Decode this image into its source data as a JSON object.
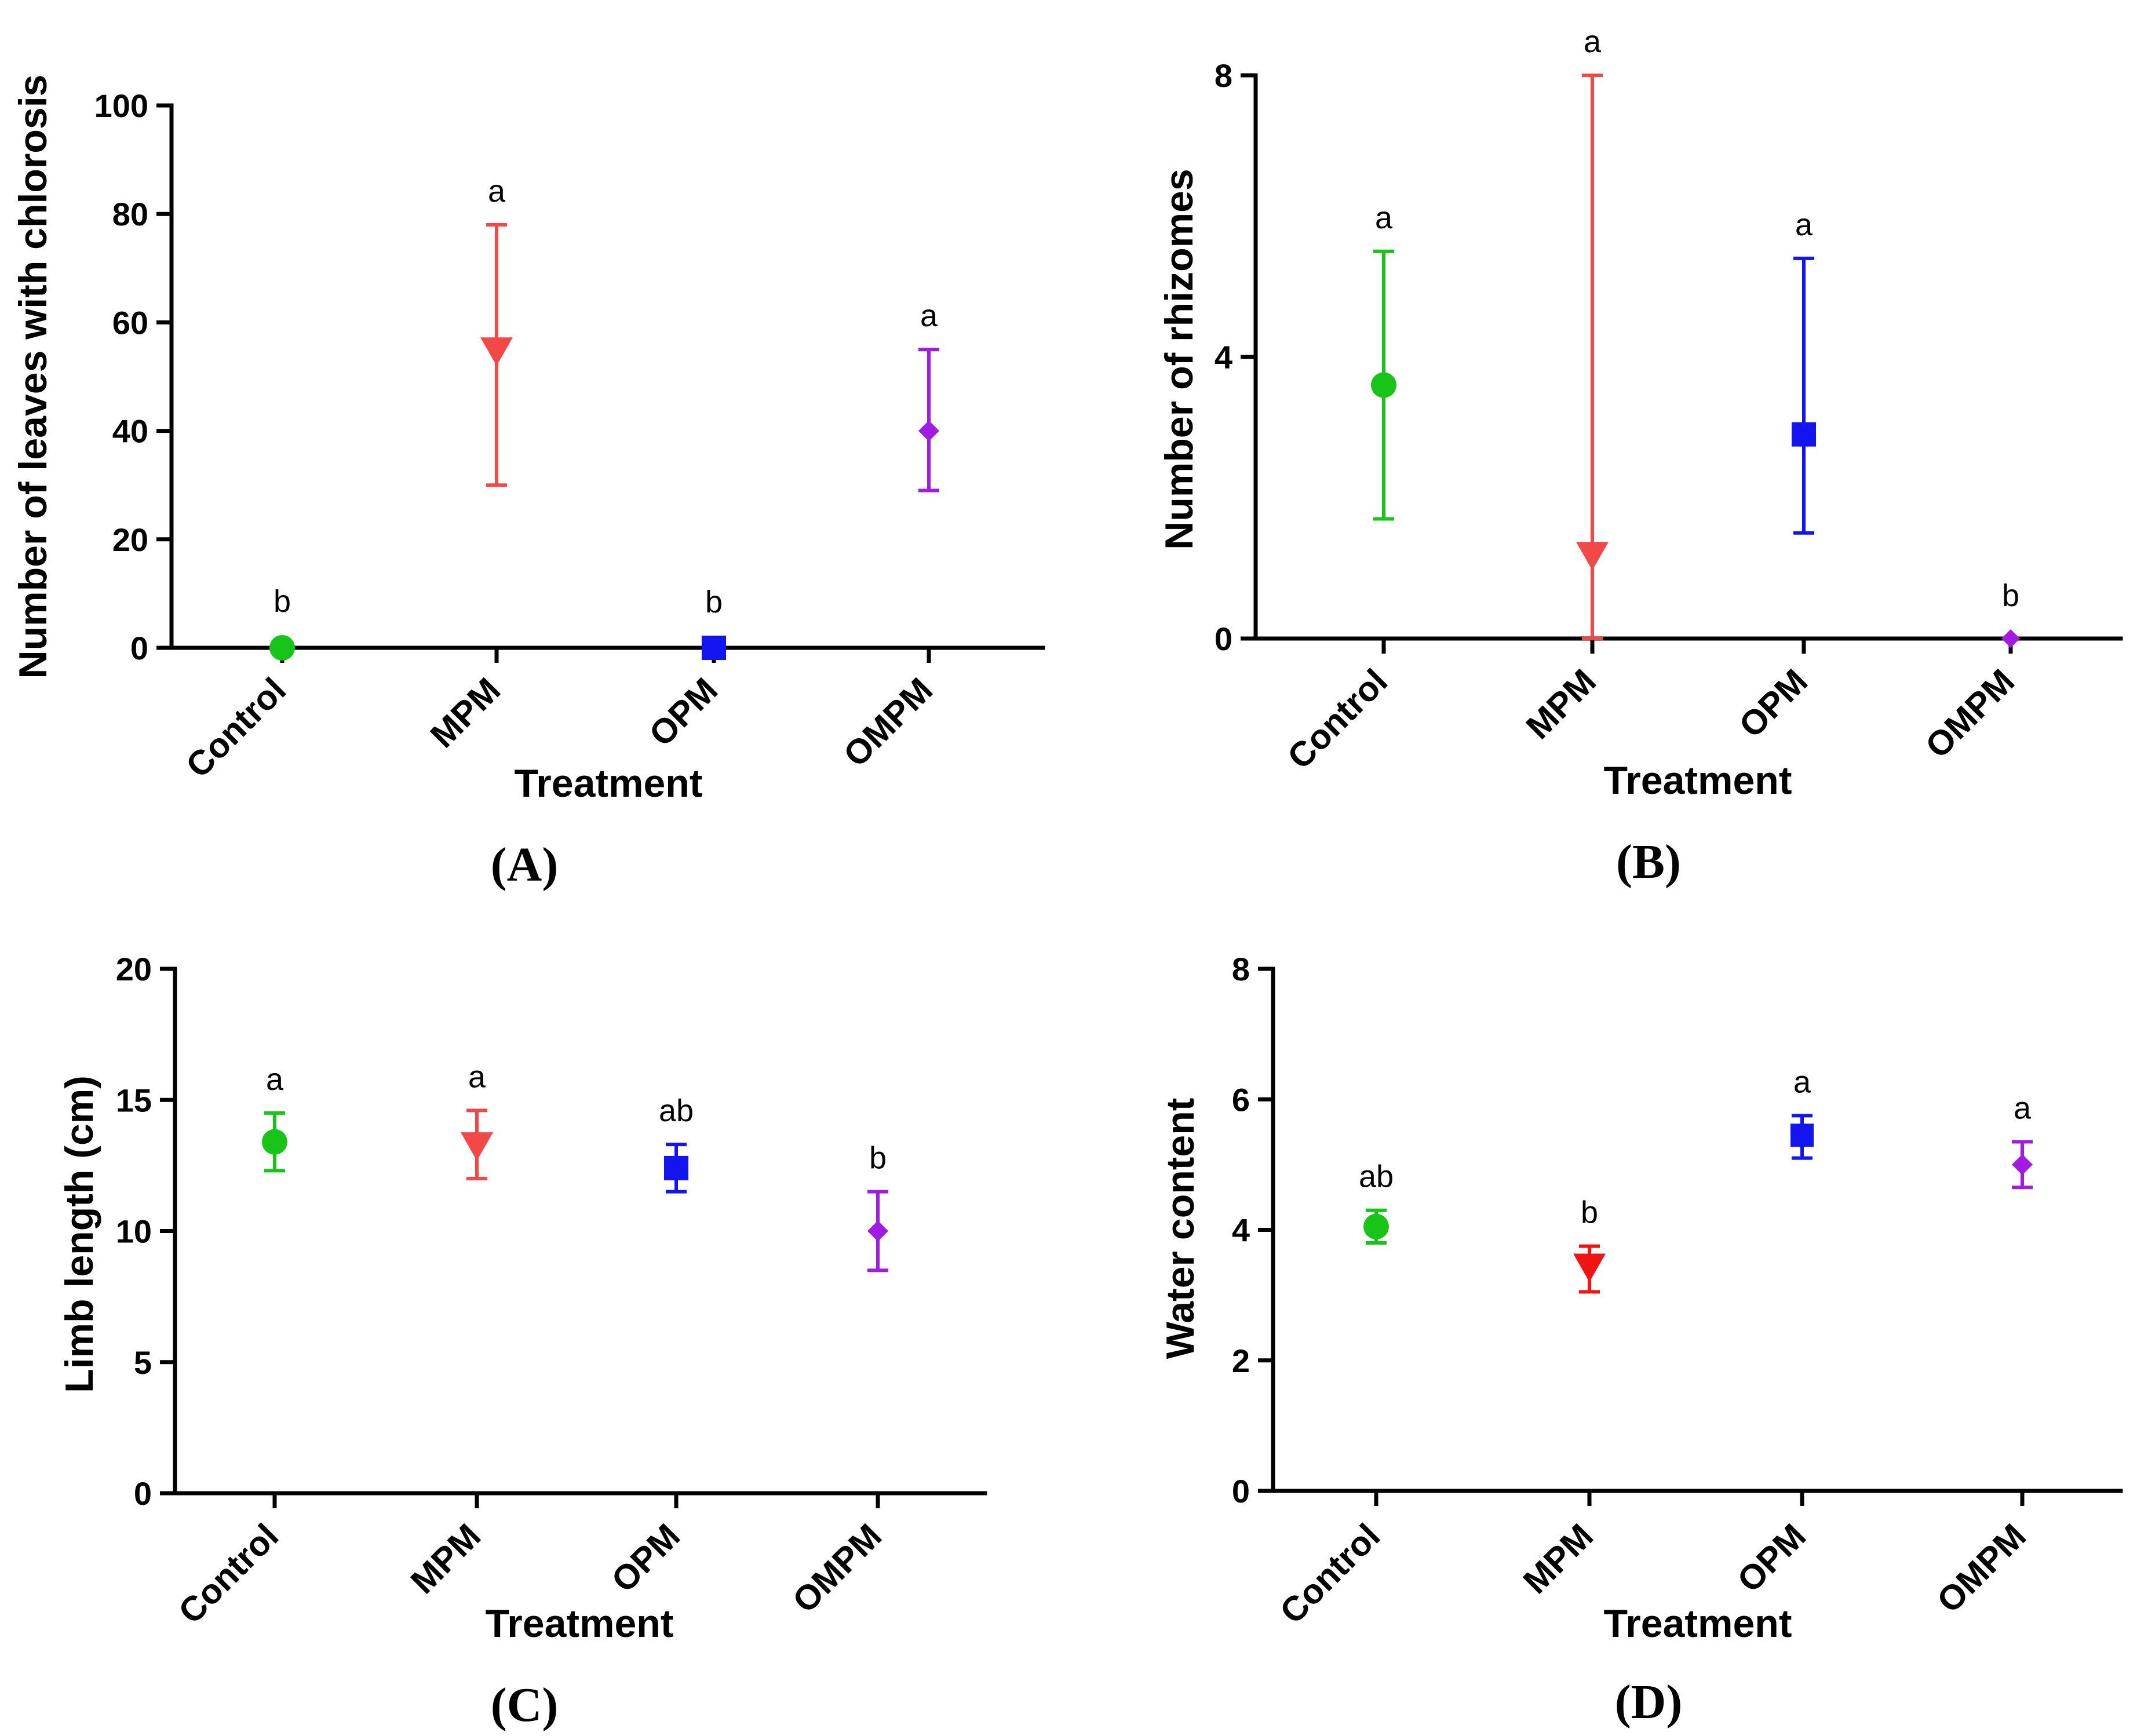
{
  "chart_data": [
    {
      "type": "scatter",
      "panel_label": "(A)",
      "xlabel": "Treatment",
      "ylabel": "Number of leaves with chlorosis",
      "ylim": [
        0,
        100
      ],
      "yticks": [
        0,
        20,
        40,
        60,
        80,
        100
      ],
      "categories": [
        "Control",
        "MPM",
        "OPM",
        "OMPM"
      ],
      "points": [
        {
          "category": "Control",
          "mean": 0,
          "low": 0,
          "high": 0,
          "sig": "b",
          "color": "#19c419",
          "marker": "circle"
        },
        {
          "category": "MPM",
          "mean": 55,
          "low": 30,
          "high": 78,
          "sig": "a",
          "color": "#f24848",
          "marker": "triangle-down"
        },
        {
          "category": "OPM",
          "mean": 0,
          "low": 0,
          "high": 0,
          "sig": "b",
          "color": "#1414f0",
          "marker": "square"
        },
        {
          "category": "OMPM",
          "mean": 40,
          "low": 29,
          "high": 55,
          "sig": "a",
          "color": "#a21be0",
          "marker": "diamond"
        }
      ]
    },
    {
      "type": "scatter",
      "panel_label": "(B)",
      "xlabel": "Treatment",
      "ylabel": "Number of rhizomes",
      "ylim": [
        0,
        8
      ],
      "yticks": [
        0,
        4,
        8
      ],
      "categories": [
        "Control",
        "MPM",
        "OPM",
        "OMPM"
      ],
      "points": [
        {
          "category": "Control",
          "mean": 3.6,
          "low": 1.7,
          "high": 5.5,
          "sig": "a",
          "color": "#19c419",
          "marker": "circle"
        },
        {
          "category": "MPM",
          "mean": 1.2,
          "low": 0,
          "high": 8,
          "sig": "a",
          "color": "#f24848",
          "marker": "triangle-down"
        },
        {
          "category": "OPM",
          "mean": 2.9,
          "low": 1.5,
          "high": 5.4,
          "sig": "a",
          "color": "#1414f0",
          "marker": "square"
        },
        {
          "category": "OMPM",
          "mean": 0,
          "low": 0,
          "high": 0,
          "sig": "b",
          "color": "#a21be0",
          "marker": "diamond"
        }
      ]
    },
    {
      "type": "scatter",
      "panel_label": "(C)",
      "xlabel": "Treatment",
      "ylabel": "Limb length (cm)",
      "ylim": [
        0,
        20
      ],
      "yticks": [
        0,
        5,
        10,
        15,
        20
      ],
      "categories": [
        "Control",
        "MPM",
        "OPM",
        "OMPM"
      ],
      "points": [
        {
          "category": "Control",
          "mean": 13.4,
          "low": 12.3,
          "high": 14.5,
          "sig": "a",
          "color": "#19c419",
          "marker": "circle"
        },
        {
          "category": "MPM",
          "mean": 13.3,
          "low": 12.0,
          "high": 14.6,
          "sig": "a",
          "color": "#f24848",
          "marker": "triangle-down"
        },
        {
          "category": "OPM",
          "mean": 12.4,
          "low": 11.5,
          "high": 13.3,
          "sig": "ab",
          "color": "#1414f0",
          "marker": "square"
        },
        {
          "category": "OMPM",
          "mean": 10.0,
          "low": 8.5,
          "high": 11.5,
          "sig": "b",
          "color": "#a21be0",
          "marker": "diamond"
        }
      ]
    },
    {
      "type": "scatter",
      "panel_label": "(D)",
      "xlabel": "Treatment",
      "ylabel": "Water content",
      "ylim": [
        0,
        8
      ],
      "yticks": [
        0,
        2,
        4,
        6,
        8
      ],
      "categories": [
        "Control",
        "MPM",
        "OPM",
        "OMPM"
      ],
      "points": [
        {
          "category": "Control",
          "mean": 4.05,
          "low": 3.8,
          "high": 4.3,
          "sig": "ab",
          "color": "#19c419",
          "marker": "circle"
        },
        {
          "category": "MPM",
          "mean": 3.45,
          "low": 3.05,
          "high": 3.75,
          "sig": "b",
          "color": "#f01414",
          "marker": "triangle-down"
        },
        {
          "category": "OPM",
          "mean": 5.45,
          "low": 5.1,
          "high": 5.75,
          "sig": "a",
          "color": "#1414f0",
          "marker": "square"
        },
        {
          "category": "OMPM",
          "mean": 5.0,
          "low": 4.65,
          "high": 5.35,
          "sig": "a",
          "color": "#a21be0",
          "marker": "diamond"
        }
      ]
    }
  ]
}
